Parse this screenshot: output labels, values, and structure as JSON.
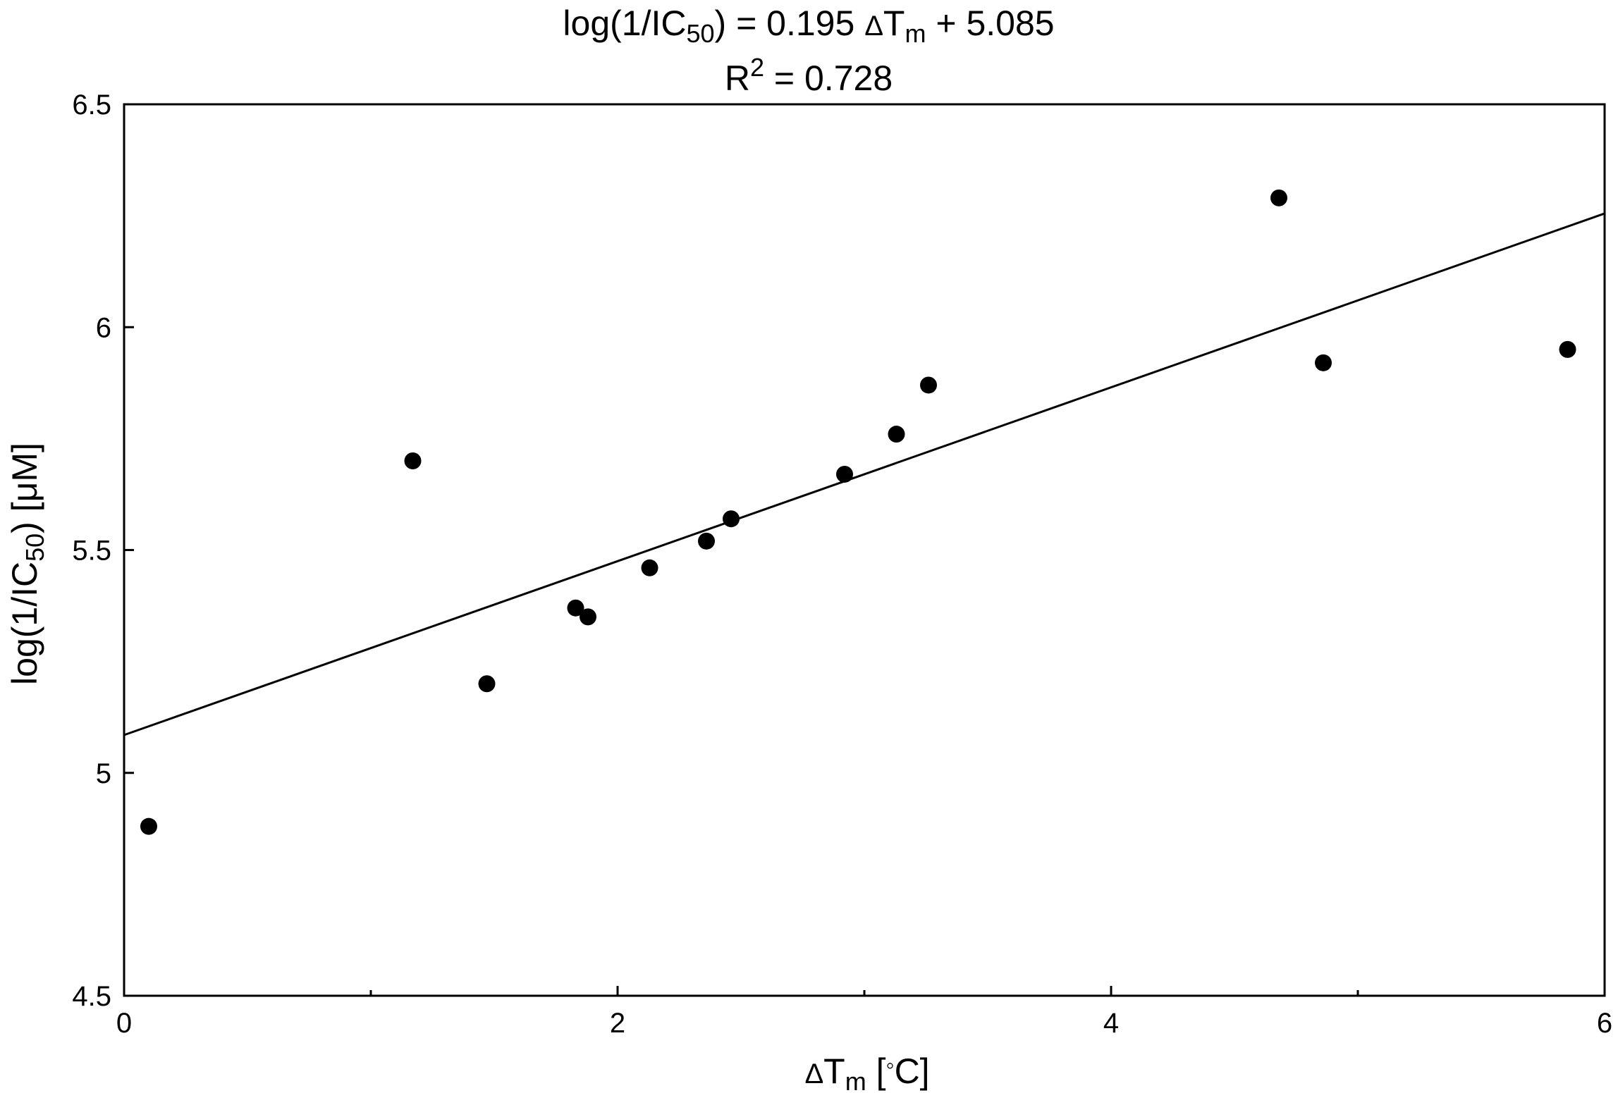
{
  "chart_data": {
    "type": "scatter",
    "title": {
      "line1": {
        "pre": "log(1/IC",
        "sub": "50",
        "mid": ") = 0.195 ",
        "delta": "Δ",
        "t": "T",
        "t_sub": "m",
        "post": " + 5.085"
      },
      "line2": {
        "pre": "R",
        "sup": "2",
        "post": " = 0.728"
      }
    },
    "xlabel": {
      "delta": "Δ",
      "t": "T",
      "sub": "m",
      "post": " [",
      "deg": "◦",
      "unit": "C]"
    },
    "ylabel": {
      "pre": "log(1/IC",
      "sub": "50",
      "post": ") [μM]"
    },
    "xlim": [
      0,
      6
    ],
    "ylim": [
      4.5,
      6.5
    ],
    "x_major_ticks": [
      0,
      2,
      4,
      6
    ],
    "x_minor_ticks": [
      1,
      3,
      5
    ],
    "y_major_ticks": [
      4.5,
      5,
      5.5,
      6,
      6.5
    ],
    "x_tick_labels": [
      "0",
      "2",
      "4",
      "6"
    ],
    "y_tick_labels": [
      "4.5",
      "5",
      "5.5",
      "6",
      "6.5"
    ],
    "grid": false,
    "series": [
      {
        "points": [
          {
            "x": 0.1,
            "y": 4.88
          },
          {
            "x": 1.17,
            "y": 5.7
          },
          {
            "x": 1.47,
            "y": 5.2
          },
          {
            "x": 1.83,
            "y": 5.37
          },
          {
            "x": 1.88,
            "y": 5.35
          },
          {
            "x": 2.13,
            "y": 5.46
          },
          {
            "x": 2.36,
            "y": 5.52
          },
          {
            "x": 2.46,
            "y": 5.57
          },
          {
            "x": 2.92,
            "y": 5.67
          },
          {
            "x": 3.13,
            "y": 5.76
          },
          {
            "x": 3.26,
            "y": 5.87
          },
          {
            "x": 4.68,
            "y": 6.29
          },
          {
            "x": 4.86,
            "y": 5.92
          },
          {
            "x": 5.85,
            "y": 5.95
          }
        ],
        "color": "#000000"
      }
    ],
    "fit_line": {
      "slope": 0.195,
      "intercept": 5.085,
      "color": "#000000"
    }
  }
}
